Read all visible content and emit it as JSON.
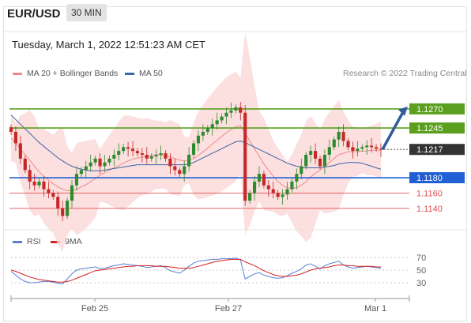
{
  "header": {
    "symbol": "EUR/USD",
    "timeframe": "30 MIN"
  },
  "date_text": "Tuesday, March 1, 2022 12:51:23 AM CET",
  "legend_main": [
    {
      "label": "MA 20 + Bollinger Bands",
      "color": "#f08a8a"
    },
    {
      "label": "MA 50",
      "color": "#3a64a8"
    }
  ],
  "credit": "Research © 2022 Trading Central",
  "legend_rsi": [
    {
      "label": "RSI",
      "color": "#5b7fd6"
    },
    {
      "label": "9MA",
      "color": "#d32020"
    }
  ],
  "colors": {
    "bull": "#2e8b2e",
    "bear": "#c62828",
    "resistance": "#5aa01e",
    "support": "#2160d4",
    "minor_support": "#e05050",
    "current": "#333333",
    "band": "#fbd9d9"
  },
  "chart_data": [
    {
      "type": "candlestick",
      "title": "",
      "ylim": [
        1.1115,
        1.1305
      ],
      "x_ticks": [
        "Feb 25",
        "Feb 27",
        "Mar 1"
      ],
      "levels": [
        {
          "label": "1.1270",
          "value": 1.127,
          "kind": "resistance"
        },
        {
          "label": "1.1245",
          "value": 1.1245,
          "kind": "resistance"
        },
        {
          "label": "1.1217",
          "value": 1.1217,
          "kind": "current"
        },
        {
          "label": "1.1180",
          "value": 1.118,
          "kind": "support"
        },
        {
          "label": "1.1160",
          "value": 1.116,
          "kind": "minor_support"
        },
        {
          "label": "1.1140",
          "value": 1.114,
          "kind": "minor_support"
        }
      ],
      "close": [
        1.124,
        1.1225,
        1.1205,
        1.119,
        1.1175,
        1.117,
        1.1175,
        1.1165,
        1.116,
        1.1155,
        1.114,
        1.113,
        1.115,
        1.117,
        1.1185,
        1.119,
        1.1195,
        1.12,
        1.1205,
        1.1195,
        1.12,
        1.1205,
        1.121,
        1.1215,
        1.122,
        1.1218,
        1.1215,
        1.1212,
        1.121,
        1.1205,
        1.1208,
        1.121,
        1.1212,
        1.1205,
        1.1195,
        1.119,
        1.1185,
        1.1195,
        1.121,
        1.1225,
        1.1235,
        1.124,
        1.1245,
        1.125,
        1.1255,
        1.126,
        1.1265,
        1.1268,
        1.1272,
        1.1265,
        1.115,
        1.116,
        1.1175,
        1.1185,
        1.117,
        1.1165,
        1.116,
        1.1155,
        1.1158,
        1.1165,
        1.1175,
        1.1185,
        1.1195,
        1.121,
        1.1215,
        1.1205,
        1.1195,
        1.121,
        1.122,
        1.123,
        1.124,
        1.1228,
        1.122,
        1.1215,
        1.1218,
        1.122,
        1.1222,
        1.122,
        1.1218,
        1.1217
      ],
      "ma20": [
        1.1232,
        1.1225,
        1.1218,
        1.121,
        1.1203,
        1.1195,
        1.1188,
        1.1182,
        1.1177,
        1.1172,
        1.1168,
        1.1165,
        1.1163,
        1.1163,
        1.1165,
        1.1168,
        1.1171,
        1.1175,
        1.1179,
        1.1183,
        1.1187,
        1.119,
        1.1193,
        1.1196,
        1.1199,
        1.1202,
        1.1204,
        1.1206,
        1.1207,
        1.1208,
        1.1209,
        1.121,
        1.121,
        1.1209,
        1.1207,
        1.1205,
        1.1203,
        1.1202,
        1.1203,
        1.1205,
        1.1209,
        1.1214,
        1.1219,
        1.1224,
        1.1229,
        1.1234,
        1.1239,
        1.1243,
        1.1247,
        1.1248,
        1.1238,
        1.1228,
        1.1218,
        1.1208,
        1.1198,
        1.119,
        1.1182,
        1.1175,
        1.117,
        1.1167,
        1.1166,
        1.1167,
        1.117,
        1.1175,
        1.1181,
        1.1186,
        1.119,
        1.1195,
        1.12,
        1.1205,
        1.121,
        1.1212,
        1.1214,
        1.1214,
        1.1214,
        1.1215,
        1.1215,
        1.1216,
        1.1216,
        1.1216
      ],
      "ma50": [
        1.1262,
        1.1256,
        1.125,
        1.1244,
        1.1238,
        1.1232,
        1.1226,
        1.1221,
        1.1216,
        1.1211,
        1.1206,
        1.1202,
        1.1198,
        1.1195,
        1.1193,
        1.1191,
        1.119,
        1.1189,
        1.1189,
        1.1189,
        1.119,
        1.1191,
        1.1192,
        1.1193,
        1.1194,
        1.1195,
        1.1196,
        1.1197,
        1.1197,
        1.1197,
        1.1197,
        1.1197,
        1.1197,
        1.1197,
        1.1197,
        1.1197,
        1.1197,
        1.1197,
        1.1198,
        1.12,
        1.1203,
        1.1206,
        1.1209,
        1.1212,
        1.1215,
        1.1218,
        1.1221,
        1.1224,
        1.1227,
        1.1228,
        1.1226,
        1.1223,
        1.122,
        1.1217,
        1.1214,
        1.1211,
        1.1208,
        1.1205,
        1.1202,
        1.1199,
        1.1197,
        1.1195,
        1.1194,
        1.1193,
        1.1193,
        1.1193,
        1.1193,
        1.1194,
        1.1195,
        1.1196,
        1.1198,
        1.1199,
        1.12,
        1.12,
        1.12,
        1.1199,
        1.1197,
        1.1195,
        1.1193,
        1.1191
      ],
      "projection": {
        "from_value": 1.1217,
        "to_value": 1.127
      }
    },
    {
      "type": "line",
      "title": "",
      "ylim": [
        10,
        80
      ],
      "y_ticks": [
        "70",
        "50",
        "30"
      ],
      "y_tick_values": [
        70,
        50,
        30
      ],
      "series": [
        {
          "name": "RSI",
          "values": [
            48,
            42,
            36,
            32,
            30,
            30,
            31,
            32,
            32,
            31,
            29,
            28,
            36,
            44,
            50,
            52,
            53,
            54,
            55,
            52,
            53,
            55,
            57,
            58,
            60,
            59,
            58,
            57,
            56,
            54,
            55,
            56,
            57,
            54,
            49,
            47,
            45,
            50,
            56,
            61,
            64,
            65,
            66,
            67,
            67,
            68,
            68,
            68,
            69,
            66,
            36,
            40,
            44,
            46,
            42,
            40,
            38,
            37,
            38,
            41,
            45,
            48,
            52,
            58,
            60,
            56,
            52,
            57,
            60,
            62,
            64,
            58,
            55,
            53,
            54,
            55,
            56,
            55,
            54,
            53
          ]
        },
        {
          "name": "9MA",
          "values": [
            50,
            48,
            45,
            42,
            39,
            37,
            35,
            34,
            33,
            32,
            31,
            31,
            32,
            34,
            37,
            40,
            43,
            46,
            49,
            50,
            51,
            52,
            53,
            54,
            55,
            56,
            56,
            57,
            57,
            57,
            57,
            56,
            56,
            56,
            55,
            54,
            53,
            53,
            53,
            54,
            56,
            58,
            60,
            62,
            64,
            65,
            66,
            67,
            67,
            67,
            63,
            60,
            57,
            53,
            49,
            46,
            43,
            41,
            40,
            40,
            41,
            42,
            44,
            47,
            50,
            52,
            53,
            54,
            55,
            57,
            58,
            58,
            57,
            57,
            56,
            56,
            56,
            56,
            55,
            55
          ]
        }
      ]
    }
  ]
}
